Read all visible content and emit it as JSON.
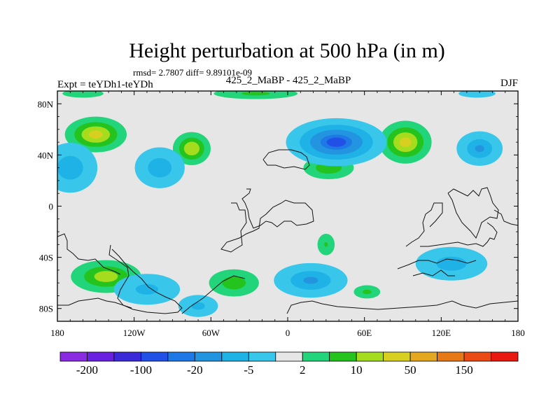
{
  "chart_data": {
    "type": "heatmap",
    "title": "Height perturbation at 500 hPa (in m)",
    "stats": "rmsd= 2.7807 diff= 9.89101e-09",
    "left_label": "Expt = teYDh1-teYDh",
    "center_label": "425_2_MaBP - 425_2_MaBP",
    "right_label": "DJF",
    "x_ticks": [
      {
        "lon": -180,
        "label": "180"
      },
      {
        "lon": -120,
        "label": "120W"
      },
      {
        "lon": -60,
        "label": "60W"
      },
      {
        "lon": 0,
        "label": "0"
      },
      {
        "lon": 60,
        "label": "60E"
      },
      {
        "lon": 120,
        "label": "120E"
      },
      {
        "lon": 180,
        "label": "180"
      }
    ],
    "y_ticks": [
      {
        "lat": 80,
        "label": "80N"
      },
      {
        "lat": 40,
        "label": "40N"
      },
      {
        "lat": 0,
        "label": "0"
      },
      {
        "lat": -40,
        "label": "40S"
      },
      {
        "lat": -80,
        "label": "80S"
      }
    ],
    "xlim": [
      -180,
      180
    ],
    "ylim": [
      -90,
      90
    ],
    "colorbar": {
      "colors": [
        "#8a2be2",
        "#6a20e0",
        "#3a2ad8",
        "#2050e6",
        "#1e78e6",
        "#2394e0",
        "#1fb2e6",
        "#38c6ea",
        "#e6e6e6",
        "#22d47a",
        "#25c31e",
        "#a6dc1e",
        "#d8d020",
        "#e3a820",
        "#e67818",
        "#ea4a14",
        "#e81a10"
      ],
      "tick_labels": [
        "-200",
        "-100",
        "-20",
        "-5",
        "2",
        "10",
        "50",
        "150"
      ]
    },
    "blobs": [
      {
        "lon": -150,
        "lat": 56,
        "dlon": 26,
        "dlat": 15,
        "value": 22
      },
      {
        "lon": -75,
        "lat": 45,
        "dlon": 16,
        "dlat": 14,
        "value": 18
      },
      {
        "lon": 32,
        "lat": 30,
        "dlon": 22,
        "dlat": 10,
        "value": 9
      },
      {
        "lon": 92,
        "lat": 50,
        "dlon": 22,
        "dlat": 18,
        "value": 22
      },
      {
        "lon": -25,
        "lat": 88,
        "dlon": 38,
        "dlat": 5,
        "value": 6
      },
      {
        "lon": -142,
        "lat": -55,
        "dlon": 30,
        "dlat": 14,
        "value": 14
      },
      {
        "lon": -42,
        "lat": -60,
        "dlon": 22,
        "dlat": 12,
        "value": 8
      },
      {
        "lon": 30,
        "lat": -30,
        "dlon": 8,
        "dlat": 10,
        "value": 5
      },
      {
        "lon": 62,
        "lat": -67,
        "dlon": 12,
        "dlat": 6,
        "value": 6
      },
      {
        "lon": -160,
        "lat": 88,
        "dlon": 20,
        "dlat": 4,
        "value": 4
      },
      {
        "lon": 38,
        "lat": 50,
        "dlon": 42,
        "dlat": 20,
        "value": -30
      },
      {
        "lon": 150,
        "lat": 45,
        "dlon": 20,
        "dlat": 15,
        "value": -10
      },
      {
        "lon": -170,
        "lat": 30,
        "dlon": 24,
        "dlat": 22,
        "value": -8
      },
      {
        "lon": -100,
        "lat": 30,
        "dlon": 22,
        "dlat": 18,
        "value": -8
      },
      {
        "lon": 148,
        "lat": 88,
        "dlon": 18,
        "dlat": 4,
        "value": -4
      },
      {
        "lon": 18,
        "lat": -58,
        "dlon": 32,
        "dlat": 15,
        "value": -10
      },
      {
        "lon": 128,
        "lat": -45,
        "dlon": 32,
        "dlat": 15,
        "value": -7
      },
      {
        "lon": -110,
        "lat": -65,
        "dlon": 30,
        "dlat": 14,
        "value": -6
      },
      {
        "lon": -70,
        "lat": -78,
        "dlon": 18,
        "dlat": 10,
        "value": -6
      }
    ]
  }
}
